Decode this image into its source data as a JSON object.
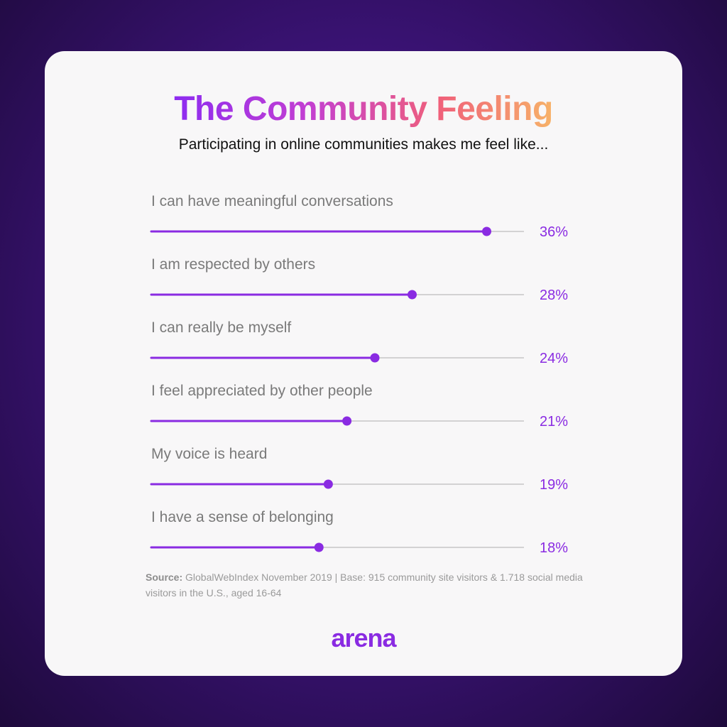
{
  "title": "The Community Feeling",
  "subtitle": "Participating in online communities makes me feel like...",
  "colors": {
    "accent": "#8a2be2",
    "track": "#bdbdbd",
    "label": "#7a7a7a"
  },
  "chart_data": {
    "type": "bar",
    "orientation": "horizontal",
    "categories": [
      "I can have meaningful conversations",
      "I am respected by others",
      "I can really be myself",
      "I feel appreciated by other people",
      "My voice is heard",
      "I have a sense of belonging"
    ],
    "values": [
      36,
      28,
      24,
      21,
      19,
      18
    ],
    "value_labels": [
      "36%",
      "28%",
      "24%",
      "21%",
      "19%",
      "18%"
    ],
    "xlim": [
      0,
      40
    ],
    "grid": false,
    "legend": "none"
  },
  "source": {
    "label": "Source:",
    "text": " GlobalWebIndex November 2019 | Base: 915 community site visitors & 1.718 social media visitors in the U.S., aged 16-64"
  },
  "logo": "arena"
}
